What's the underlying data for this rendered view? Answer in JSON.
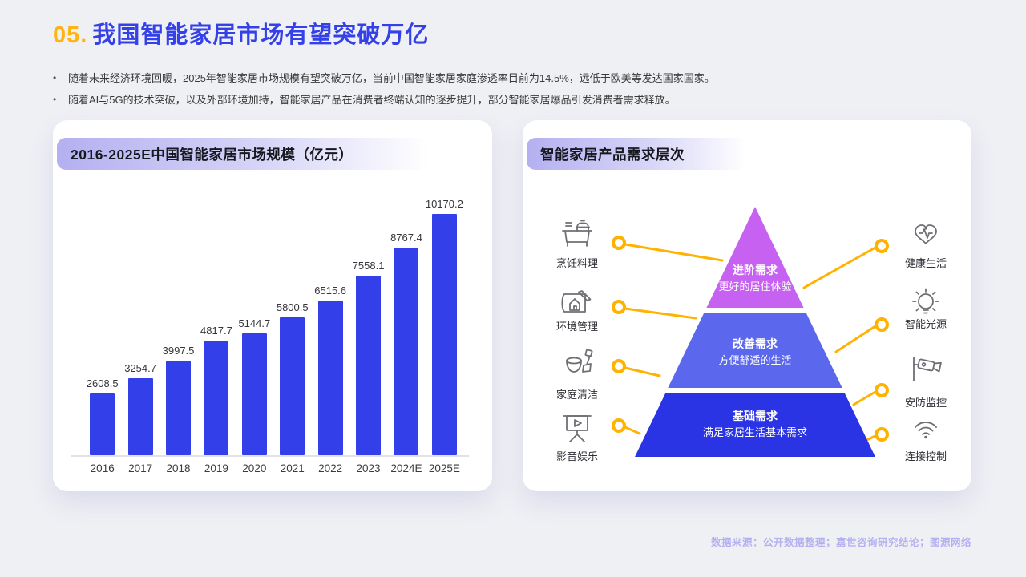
{
  "page": {
    "title_number": "05.",
    "title": "我国智能家居市场有望突破万亿",
    "bullet_marker": "•",
    "bullets": [
      "随着未来经济环境回暖，2025年智能家居市场规模有望突破万亿，当前中国智能家居家庭渗透率目前为14.5%，远低于欧美等发达国家国家。",
      "随着AI与5G的技术突破，以及外部环境加持，智能家居产品在消费者终端认知的逐步提升，部分智能家居爆品引发消费者需求释放。"
    ],
    "footer": "数据来源：公开数据整理；嘉世咨询研究结论；图源网络"
  },
  "colors": {
    "accent_blue": "#3440E8",
    "accent_gold": "#FFB412",
    "bar_blue": "#3340EA",
    "connector_yellow": "#FFB300",
    "pyramid_top": "#C661F1",
    "pyramid_mid": "#5B68EE",
    "pyramid_bottom": "#2B34E4"
  },
  "left_card": {
    "title": "2016-2025E中国智能家居市场规模（亿元）"
  },
  "chart_data": {
    "type": "bar",
    "title": "2016-2025E中国智能家居市场规模（亿元）",
    "categories": [
      "2016",
      "2017",
      "2018",
      "2019",
      "2020",
      "2021",
      "2022",
      "2023",
      "2024E",
      "2025E"
    ],
    "values": [
      2608.5,
      3254.7,
      3997.5,
      4817.7,
      5144.7,
      5800.5,
      6515.6,
      7558.1,
      8767.4,
      10170.2
    ],
    "unit": "亿元",
    "ylim": [
      0,
      10500
    ],
    "grid": false,
    "data_labels": true,
    "legend": false,
    "bar_color": "#3340EA"
  },
  "right_card": {
    "title": "智能家居产品需求层次",
    "pyramid": [
      {
        "name": "进阶需求",
        "desc": "更好的居住体验",
        "color": "#C661F1"
      },
      {
        "name": "改善需求",
        "desc": "方便舒适的生活",
        "color": "#5B68EE"
      },
      {
        "name": "基础需求",
        "desc": "满足家居生活基本需求",
        "color": "#2B34E4"
      }
    ],
    "left_items": [
      {
        "label": "烹饪料理"
      },
      {
        "label": "环境管理"
      },
      {
        "label": "家庭清洁"
      },
      {
        "label": "影音娱乐"
      }
    ],
    "right_items": [
      {
        "label": "健康生活"
      },
      {
        "label": "智能光源"
      },
      {
        "label": "安防监控"
      },
      {
        "label": "连接控制"
      }
    ]
  }
}
